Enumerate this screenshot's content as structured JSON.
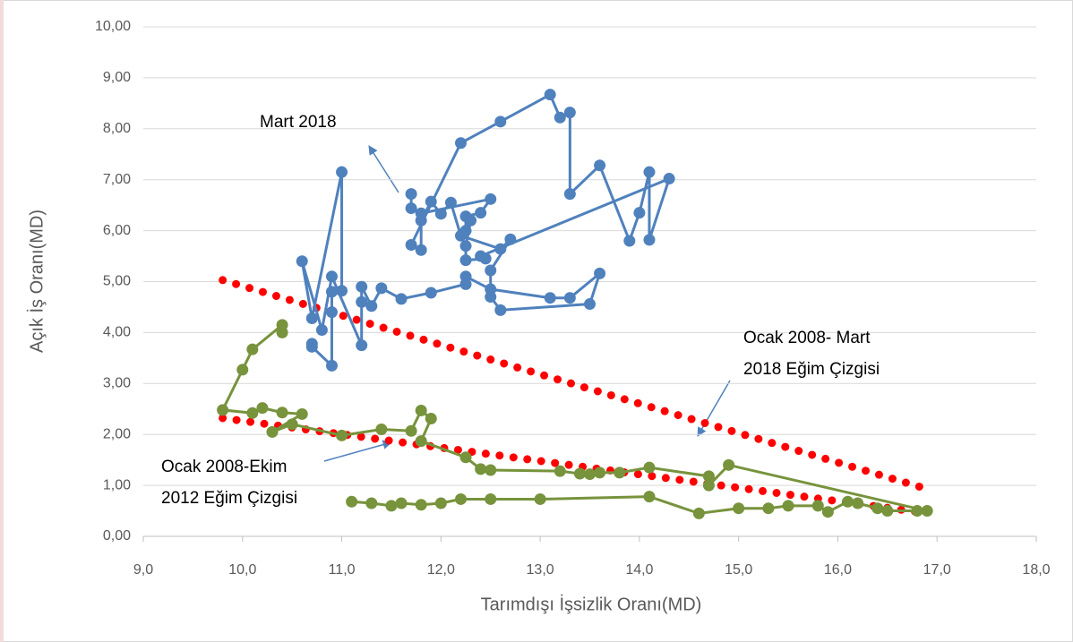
{
  "chart_data": {
    "type": "line",
    "x_label": "Tarımdışı İşsizlik Oranı(MD)",
    "y_label": "Açık İş Oranı(MD)",
    "xlim": [
      9,
      18
    ],
    "xticks": [
      {
        "value": 9,
        "label": "9,0"
      },
      {
        "value": 10,
        "label": "10,0"
      },
      {
        "value": 11,
        "label": "11,0"
      },
      {
        "value": 12,
        "label": "12,0"
      },
      {
        "value": 13,
        "label": "13,0"
      },
      {
        "value": 14,
        "label": "14,0"
      },
      {
        "value": 15,
        "label": "15,0"
      },
      {
        "value": 16,
        "label": "16,0"
      },
      {
        "value": 17,
        "label": "17,0"
      },
      {
        "value": 18,
        "label": "18,0"
      }
    ],
    "ylim": [
      0,
      10
    ],
    "yticks": [
      {
        "value": 0,
        "label": "0,00"
      },
      {
        "value": 1,
        "label": "1,00"
      },
      {
        "value": 2,
        "label": "2,00"
      },
      {
        "value": 3,
        "label": "3,00"
      },
      {
        "value": 4,
        "label": "4,00"
      },
      {
        "value": 5,
        "label": "5,00"
      },
      {
        "value": 6,
        "label": "6,00"
      },
      {
        "value": 7,
        "label": "7,00"
      },
      {
        "value": 8,
        "label": "8,00"
      },
      {
        "value": 9,
        "label": "9,00"
      },
      {
        "value": 10,
        "label": "10,00"
      }
    ],
    "grid": true,
    "annotations": [
      {
        "lines": [
          "Mart 2018"
        ]
      },
      {
        "lines": [
          "Ocak 2008- Mart",
          "2018 Eğim Çizgisi"
        ]
      },
      {
        "lines": [
          "Ocak 2008-Ekim",
          "2012 Eğim Çizgisi"
        ]
      }
    ],
    "series": [
      {
        "color": "#77933c",
        "style": "solid",
        "x": [
          11.1,
          11.3,
          11.5,
          11.6,
          11.8,
          12.0,
          12.2,
          12.5,
          13.0,
          14.1,
          14.6,
          15.0,
          15.3,
          15.5,
          15.8,
          15.9,
          16.1,
          16.2,
          16.4,
          16.5,
          16.8,
          16.9,
          14.9,
          14.7,
          14.7,
          14.1,
          13.8,
          13.6,
          13.5,
          13.4,
          13.2,
          12.5,
          12.4,
          12.25,
          11.8,
          11.9,
          11.8,
          11.7,
          11.4,
          11.0,
          10.5,
          10.3,
          10.6,
          10.4,
          10.2,
          10.1,
          9.8,
          10.0,
          10.1,
          10.4,
          10.4
        ],
        "values": [
          0.68,
          0.65,
          0.6,
          0.65,
          0.62,
          0.65,
          0.73,
          0.73,
          0.73,
          0.78,
          0.45,
          0.55,
          0.55,
          0.6,
          0.6,
          0.48,
          0.68,
          0.65,
          0.55,
          0.5,
          0.5,
          0.5,
          1.4,
          1.0,
          1.18,
          1.35,
          1.25,
          1.25,
          1.22,
          1.23,
          1.28,
          1.3,
          1.32,
          1.55,
          1.87,
          2.31,
          2.47,
          2.07,
          2.1,
          1.98,
          2.2,
          2.05,
          2.4,
          2.43,
          2.52,
          2.42,
          2.48,
          3.27,
          3.67,
          4.15,
          4.0
        ]
      },
      {
        "color": "#4f81bd",
        "style": "solid",
        "x": [
          10.7,
          10.7,
          10.9,
          10.9,
          10.9,
          11.0,
          11.0,
          10.7,
          10.6,
          10.8,
          10.9,
          11.2,
          11.2,
          11.2,
          11.3,
          11.4,
          11.6,
          11.9,
          12.25,
          12.25,
          12.5,
          13.1,
          13.3,
          13.6,
          13.5,
          12.6,
          12.5,
          12.5,
          12.7,
          12.6,
          12.2,
          12.1,
          12.0,
          11.9,
          11.8,
          11.8,
          11.7,
          12.2,
          12.6,
          13.1,
          13.2,
          13.3,
          13.3,
          13.6,
          13.9,
          14.0,
          14.1,
          14.1,
          14.3,
          12.4,
          12.45,
          12.25,
          12.25,
          12.3,
          12.25,
          12.25,
          12.4,
          12.5,
          11.8,
          11.7,
          11.7
        ],
        "values": [
          3.78,
          3.72,
          3.35,
          4.4,
          4.8,
          4.82,
          7.15,
          4.28,
          5.4,
          4.05,
          5.1,
          3.75,
          4.6,
          4.9,
          4.52,
          4.87,
          4.66,
          4.78,
          4.95,
          5.1,
          4.85,
          4.68,
          4.68,
          5.16,
          4.56,
          4.44,
          4.7,
          5.22,
          5.83,
          5.64,
          5.9,
          6.55,
          6.33,
          6.57,
          6.2,
          5.62,
          5.72,
          7.72,
          8.14,
          8.67,
          8.22,
          8.32,
          6.72,
          7.28,
          5.8,
          6.35,
          7.15,
          5.82,
          7.02,
          5.5,
          5.45,
          5.42,
          5.7,
          6.2,
          6.0,
          6.28,
          6.35,
          6.62,
          6.34,
          6.44,
          6.72
        ]
      },
      {
        "color": "#ff0000",
        "style": "dotted",
        "x": [
          9.8,
          16.9
        ],
        "values": [
          5.03,
          0.93
        ]
      },
      {
        "color": "#ff0000",
        "style": "dotted",
        "x": [
          9.8,
          16.8
        ],
        "values": [
          2.32,
          0.48
        ]
      }
    ]
  }
}
